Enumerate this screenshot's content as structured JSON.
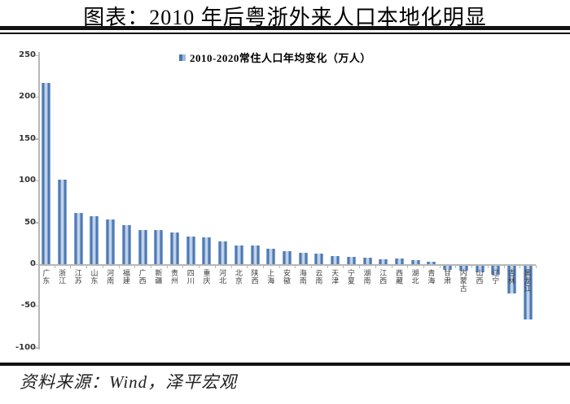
{
  "title": "图表：2010 年后粤浙外来人口本地化明显",
  "footer": {
    "source_label": "资料来源：Wind，泽平宏观"
  },
  "chart_data": {
    "type": "bar",
    "title": "图表：2010 年后粤浙外来人口本地化明显",
    "legend": [
      "2010-2020常住人口年均变化（万人）"
    ],
    "legend_position": "top-center",
    "unit": "万人",
    "xlabel": "",
    "ylabel": "",
    "ylim": [
      -100,
      250
    ],
    "yticks": [
      250,
      200,
      150,
      100,
      50,
      0,
      -50,
      -100
    ],
    "grid": false,
    "bar_color": "#4f81bd",
    "bar_color_light": "#b7cbe7",
    "axis_color": "#b7b7b7",
    "categories": [
      "广东",
      "浙江",
      "江苏",
      "山东",
      "河南",
      "福建",
      "广西",
      "新疆",
      "贵州",
      "四川",
      "重庆",
      "河北",
      "北京",
      "陕西",
      "上海",
      "安徽",
      "海南",
      "云南",
      "天津",
      "宁夏",
      "湖南",
      "江西",
      "西藏",
      "湖北",
      "青海",
      "甘肃",
      "内蒙古",
      "山西",
      "辽宁",
      "吉林",
      "黑龙江"
    ],
    "values": [
      216.9,
      101.4,
      60.9,
      57.3,
      53.4,
      46.6,
      41.1,
      40.4,
      38.2,
      32.6,
      32.1,
      27.6,
      22.8,
      22.0,
      18.5,
      15.3,
      14.1,
      12.4,
      9.3,
      9.0,
      7.6,
      6.2,
      6.5,
      5.1,
      3.0,
      -5.6,
      -6.6,
      -8.0,
      -11.5,
      -33.9,
      -64.6
    ]
  }
}
